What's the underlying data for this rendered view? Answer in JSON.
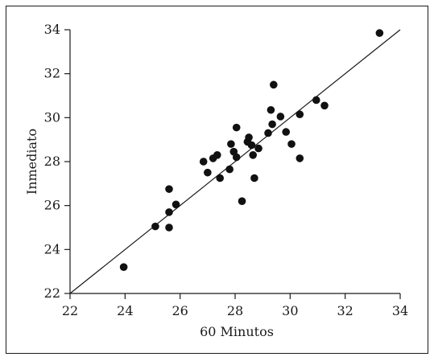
{
  "chart_data": {
    "type": "scatter",
    "title": "",
    "xlabel": "60 Minutos",
    "ylabel": "Inmediato",
    "xlim": [
      22,
      34
    ],
    "ylim": [
      22,
      34
    ],
    "xticks": [
      22,
      24,
      26,
      28,
      30,
      32,
      34
    ],
    "yticks": [
      22,
      24,
      26,
      28,
      30,
      32,
      34
    ],
    "grid": false,
    "reference_line": {
      "from": [
        22,
        22
      ],
      "to": [
        34,
        34
      ]
    },
    "points": [
      {
        "x": 23.95,
        "y": 23.2
      },
      {
        "x": 25.1,
        "y": 25.05
      },
      {
        "x": 25.6,
        "y": 25.0
      },
      {
        "x": 25.6,
        "y": 25.7
      },
      {
        "x": 25.6,
        "y": 26.75
      },
      {
        "x": 25.85,
        "y": 26.05
      },
      {
        "x": 26.85,
        "y": 28.0
      },
      {
        "x": 27.0,
        "y": 27.5
      },
      {
        "x": 27.2,
        "y": 28.15
      },
      {
        "x": 27.35,
        "y": 28.3
      },
      {
        "x": 27.45,
        "y": 27.25
      },
      {
        "x": 27.8,
        "y": 27.65
      },
      {
        "x": 27.85,
        "y": 28.8
      },
      {
        "x": 27.95,
        "y": 28.45
      },
      {
        "x": 28.05,
        "y": 28.2
      },
      {
        "x": 28.05,
        "y": 29.55
      },
      {
        "x": 28.25,
        "y": 26.2
      },
      {
        "x": 28.45,
        "y": 28.9
      },
      {
        "x": 28.5,
        "y": 29.1
      },
      {
        "x": 28.6,
        "y": 28.75
      },
      {
        "x": 28.65,
        "y": 28.3
      },
      {
        "x": 28.7,
        "y": 27.25
      },
      {
        "x": 28.85,
        "y": 28.6
      },
      {
        "x": 29.2,
        "y": 29.3
      },
      {
        "x": 29.3,
        "y": 30.35
      },
      {
        "x": 29.35,
        "y": 29.7
      },
      {
        "x": 29.4,
        "y": 31.5
      },
      {
        "x": 29.65,
        "y": 30.05
      },
      {
        "x": 29.85,
        "y": 29.35
      },
      {
        "x": 30.05,
        "y": 28.8
      },
      {
        "x": 30.35,
        "y": 28.15
      },
      {
        "x": 30.35,
        "y": 30.15
      },
      {
        "x": 30.95,
        "y": 30.8
      },
      {
        "x": 31.25,
        "y": 30.55
      },
      {
        "x": 33.25,
        "y": 33.85
      }
    ]
  }
}
